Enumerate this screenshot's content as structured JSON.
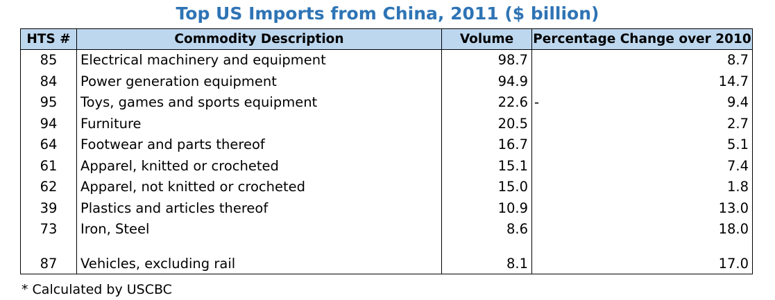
{
  "title": "Top US Imports from China, 2011 ($ billion)",
  "colors": {
    "title": "#2e74b5",
    "header_fill": "#bdd7ee",
    "border": "#000000"
  },
  "table": {
    "headers": {
      "code": "HTS #",
      "description": "Commodity Description",
      "volume": "Volume",
      "change": "Percentage Change over 2010"
    },
    "rows": [
      {
        "code": "85",
        "description": "Electrical machinery and equipment",
        "volume": "98.7",
        "sign": "",
        "change": "8.7"
      },
      {
        "code": "84",
        "description": "Power generation equipment",
        "volume": "94.9",
        "sign": "",
        "change": "14.7"
      },
      {
        "code": "95",
        "description": "Toys, games and sports equipment",
        "volume": "22.6",
        "sign": "-",
        "change": "9.4"
      },
      {
        "code": "94",
        "description": "Furniture",
        "volume": "20.5",
        "sign": "",
        "change": "2.7"
      },
      {
        "code": "64",
        "description": "Footwear and parts thereof",
        "volume": "16.7",
        "sign": "",
        "change": "5.1"
      },
      {
        "code": "61",
        "description": "Apparel, knitted or crocheted",
        "volume": "15.1",
        "sign": "",
        "change": "7.4"
      },
      {
        "code": "62",
        "description": "Apparel, not knitted or crocheted",
        "volume": "15.0",
        "sign": "",
        "change": "1.8"
      },
      {
        "code": "39",
        "description": "Plastics and articles thereof",
        "volume": "10.9",
        "sign": "",
        "change": "13.0"
      },
      {
        "code": "73",
        "description": "Iron, Steel",
        "volume": "8.6",
        "sign": "",
        "change": "18.0"
      },
      {
        "code": "87",
        "description": "Vehicles, excluding rail",
        "volume": "8.1",
        "sign": "",
        "change": "17.0"
      }
    ]
  },
  "footnote": "* Calculated by USCBC",
  "chart_data": {
    "type": "table",
    "title": "Top US Imports from China, 2011 ($ billion)",
    "columns": [
      "HTS #",
      "Commodity Description",
      "Volume",
      "Percentage Change over 2010"
    ],
    "rows": [
      [
        "85",
        "Electrical machinery and equipment",
        98.7,
        8.7
      ],
      [
        "84",
        "Power generation equipment",
        94.9,
        14.7
      ],
      [
        "95",
        "Toys, games and sports equipment",
        22.6,
        -9.4
      ],
      [
        "94",
        "Furniture",
        20.5,
        2.7
      ],
      [
        "64",
        "Footwear and parts thereof",
        16.7,
        5.1
      ],
      [
        "61",
        "Apparel, knitted or crocheted",
        15.1,
        7.4
      ],
      [
        "62",
        "Apparel, not knitted or crocheted",
        15.0,
        1.8
      ],
      [
        "39",
        "Plastics and articles thereof",
        10.9,
        13.0
      ],
      [
        "73",
        "Iron, Steel",
        8.6,
        18.0
      ],
      [
        "87",
        "Vehicles, excluding rail",
        8.1,
        17.0
      ]
    ],
    "footnote": "* Calculated by USCBC"
  }
}
